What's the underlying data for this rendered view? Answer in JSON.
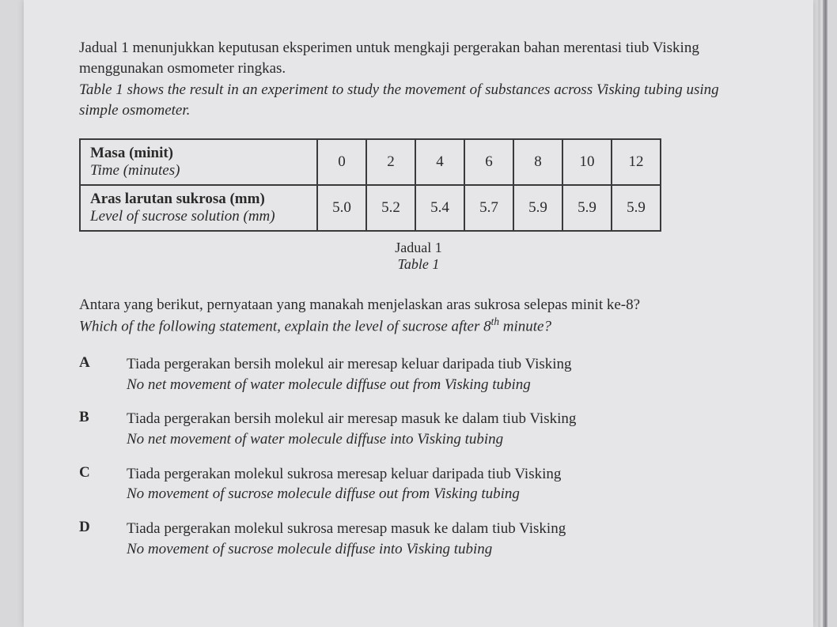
{
  "intro": {
    "bm": "Jadual 1 menunjukkan keputusan eksperimen untuk mengkaji pergerakan bahan merentasi tiub Visking menggunakan osmometer ringkas.",
    "en": "Table 1 shows the result in an experiment to study the movement of substances across Visking tubing using simple osmometer."
  },
  "table": {
    "row1": {
      "label_bm": "Masa (minit)",
      "label_en": "Time (minutes)",
      "values": [
        "0",
        "2",
        "4",
        "6",
        "8",
        "10",
        "12"
      ]
    },
    "row2": {
      "label_bm": "Aras larutan sukrosa (mm)",
      "label_en": "Level of sucrose solution (mm)",
      "values": [
        "5.0",
        "5.2",
        "5.4",
        "5.7",
        "5.9",
        "5.9",
        "5.9"
      ]
    },
    "caption_bm": "Jadual 1",
    "caption_en": "Table 1",
    "border_color": "#3a3a3a",
    "background_color": "#e6e6e8"
  },
  "question": {
    "bm": "Antara yang berikut, pernyataan yang manakah menjelaskan aras sukrosa selepas minit ke-8?",
    "en_pre": "Which of the following statement, explain the level of sucrose after 8",
    "en_sup": "th",
    "en_post": " minute?"
  },
  "options": {
    "A": {
      "letter": "A",
      "bm": "Tiada pergerakan bersih molekul air meresap keluar daripada tiub Visking",
      "en": "No net movement of water molecule diffuse out from Visking tubing"
    },
    "B": {
      "letter": "B",
      "bm": "Tiada pergerakan bersih molekul air meresap masuk ke dalam tiub Visking",
      "en": "No net movement of water molecule diffuse into Visking tubing"
    },
    "C": {
      "letter": "C",
      "bm": "Tiada pergerakan molekul sukrosa meresap keluar daripada tiub Visking",
      "en": "No movement of sucrose molecule diffuse out from Visking tubing"
    },
    "D": {
      "letter": "D",
      "bm": "Tiada pergerakan molekul sukrosa meresap masuk ke dalam tiub Visking",
      "en": "No movement of sucrose molecule diffuse into Visking tubing"
    }
  },
  "colors": {
    "page_bg": "#e6e6e8",
    "outer_bg": "#d8d8da",
    "text": "#2a2a2a"
  }
}
